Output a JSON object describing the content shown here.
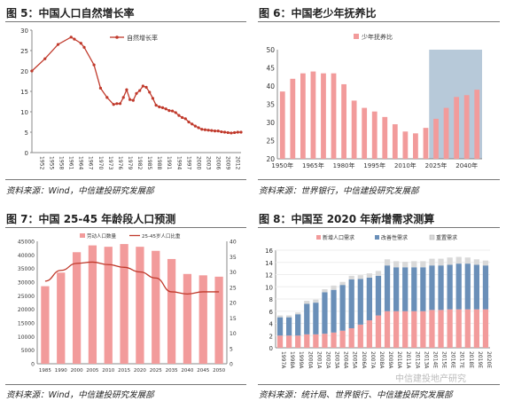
{
  "panels": {
    "p1": {
      "title": "图 5：中国人口自然增长率",
      "source": "资料来源：Wind，中信建投研究发展部"
    },
    "p2": {
      "title": "图 6：中国老少年抚养比",
      "source": "资料来源：世界银行，中信建投研究发展部"
    },
    "p3": {
      "title": "图 7：中国 25-45 年龄段人口预测",
      "source": "资料来源：Wind，中信建投研究发展部"
    },
    "p4": {
      "title": "图 8：中国至 2020 年新增需求测算",
      "source": "资料来源：统计局、世界银行、中信建投研究发展部"
    }
  },
  "watermark": "中信建投地产研究",
  "chart_data": [
    {
      "type": "line",
      "legend": [
        "自然增长率"
      ],
      "ylim": [
        0,
        30
      ],
      "yticks": [
        0,
        5,
        10,
        15,
        20,
        25,
        30
      ],
      "xtick_labels": [
        "1952",
        "1955",
        "1958",
        "1961",
        "1964",
        "1967",
        "1970",
        "1973",
        "1976",
        "1979",
        "1982",
        "1985",
        "1988",
        "1991",
        "1994",
        "1997",
        "2000",
        "2003",
        "2006",
        "2009",
        "2012"
      ],
      "series": [
        {
          "name": "自然增长率",
          "x": [
            1950,
            1954,
            1958,
            1962,
            1963,
            1965,
            1966,
            1969,
            1971,
            1973,
            1975,
            1976,
            1977,
            1978,
            1979,
            1980,
            1981,
            1982,
            1983,
            1984,
            1985,
            1986,
            1987,
            1988,
            1989,
            1990,
            1991,
            1992,
            1993,
            1994,
            1995,
            1996,
            1997,
            1998,
            1999,
            2000,
            2001,
            2002,
            2003,
            2004,
            2005,
            2006,
            2007,
            2008,
            2009,
            2010,
            2011,
            2012,
            2013,
            2014
          ],
          "values": [
            20,
            23,
            26.5,
            28.3,
            27.8,
            26.8,
            25.8,
            21.5,
            15.8,
            13.5,
            11.8,
            12,
            12,
            13.5,
            15.4,
            13,
            12.8,
            14.5,
            15.2,
            16.3,
            16,
            14.8,
            13.3,
            11.6,
            11.2,
            11,
            10.7,
            10.3,
            10.2,
            9.8,
            9.1,
            8.6,
            8.3,
            7.5,
            7,
            6.5,
            6.1,
            5.7,
            5.6,
            5.5,
            5.4,
            5.3,
            5.3,
            5.1,
            5,
            4.9,
            4.8,
            4.9,
            5,
            5
          ]
        }
      ]
    },
    {
      "type": "bar",
      "legend": [
        "少年抚养比"
      ],
      "ylim": [
        20,
        50
      ],
      "yticks": [
        20,
        25,
        30,
        35,
        40,
        45,
        50
      ],
      "x": [
        1950,
        1955,
        1960,
        1965,
        1970,
        1975,
        1980,
        1985,
        1990,
        1995,
        2000,
        2005,
        2010,
        2015,
        2020,
        2025,
        2030,
        2035,
        2040,
        2045
      ],
      "xtick_labels": [
        "1950年",
        "1965年",
        "1980年",
        "1995年",
        "2010年",
        "2025年",
        "2040年"
      ],
      "values": [
        38.5,
        42,
        43.5,
        44,
        43.5,
        43.5,
        40.5,
        36,
        34,
        33,
        31.5,
        29.5,
        27.5,
        27,
        28.5,
        31,
        34,
        37,
        37.5,
        39
      ],
      "highlight_from": "2025年"
    },
    {
      "type": "bar",
      "legend": [
        "劳动人口数量",
        "25-45岁人口比重"
      ],
      "categories": [
        "1985",
        "1990",
        "2000",
        "2005",
        "2010",
        "2015",
        "2020",
        "2025",
        "2035",
        "2040",
        "2045",
        "2050"
      ],
      "ylim_left": [
        0,
        45000
      ],
      "yticks_left": [
        0,
        5000,
        10000,
        15000,
        20000,
        25000,
        30000,
        35000,
        40000,
        45000
      ],
      "ylim_right": [
        0,
        40
      ],
      "yticks_right": [
        0,
        5,
        10,
        15,
        20,
        25,
        30,
        35,
        40
      ],
      "series": [
        {
          "name": "劳动人口数量",
          "axis": "left",
          "values": [
            28500,
            33500,
            41000,
            43500,
            43000,
            44000,
            43000,
            41500,
            38500,
            33000,
            32500,
            32000
          ]
        },
        {
          "name": "25-45岁人口比重",
          "axis": "right",
          "type": "line",
          "values": [
            27,
            30.5,
            32.8,
            33.2,
            32.4,
            31.5,
            30,
            28,
            23.5,
            22.8,
            23.5,
            23.5
          ]
        }
      ]
    },
    {
      "type": "bar",
      "stacked": true,
      "legend": [
        "新增人口需求",
        "改善性需求",
        "重置需求"
      ],
      "ylim": [
        0,
        16
      ],
      "yticks": [
        0,
        2,
        4,
        6,
        8,
        10,
        12,
        14,
        16
      ],
      "categories": [
        "1997A",
        "1998A",
        "1999A",
        "2000A",
        "2001A",
        "2002A",
        "2003A",
        "2004A",
        "2005A",
        "2006A",
        "2007A",
        "2008A",
        "2009A",
        "2010A",
        "2011A",
        "2012A",
        "2013A",
        "2014E",
        "2015E",
        "2016E",
        "2017E",
        "2018E",
        "2019E",
        "2020E"
      ],
      "series": [
        {
          "name": "新增人口需求",
          "values": [
            2,
            2,
            2,
            2.2,
            2.2,
            2.3,
            2.5,
            2.8,
            3.2,
            3.8,
            4.5,
            5.3,
            6,
            6,
            6,
            6,
            6,
            6.2,
            6.2,
            6.3,
            6.3,
            6.3,
            6.3,
            6.3
          ]
        },
        {
          "name": "改善性需求",
          "values": [
            3,
            3,
            3.5,
            5,
            5.2,
            6.8,
            7,
            7.5,
            8,
            7.5,
            7,
            6.5,
            7.5,
            7.2,
            7.2,
            7.2,
            7.2,
            7.3,
            7.3,
            7.3,
            7.5,
            7.5,
            7.3,
            7.2
          ]
        },
        {
          "name": "重置需求",
          "values": [
            0.3,
            0.3,
            0.3,
            0.5,
            0.5,
            0.5,
            0.7,
            0.5,
            0.6,
            0.6,
            0.7,
            0.8,
            1,
            1,
            0.9,
            1,
            1,
            1.1,
            1.1,
            1.2,
            1.1,
            1,
            0.9,
            0.8
          ]
        }
      ]
    }
  ]
}
